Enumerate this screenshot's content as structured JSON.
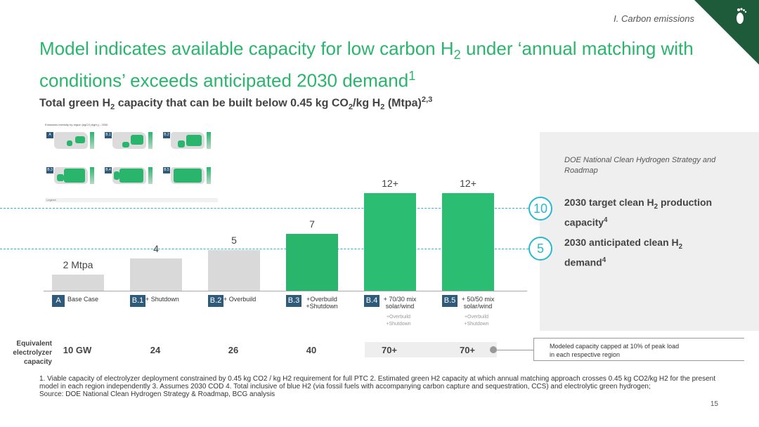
{
  "header": {
    "section": "I. Carbon emissions",
    "logo_icon": "footprint-icon"
  },
  "title": {
    "part1": "Model indicates available capacity for low carbon H",
    "sub": "2",
    "part2": " under ‘annual matching with conditions’ exceeds anticipated 2030 demand",
    "sup": "1"
  },
  "subtitle": {
    "a": "Total green H",
    "a_sub": "2",
    "b": " capacity that can be built below 0.45 kg CO",
    "b_sub": "2",
    "c": "/kg H",
    "c_sub": "2",
    "d": " (Mtpa)",
    "sup": "2,3"
  },
  "inset": {
    "caption": "Emissions intensity by region (kgCO₂/kgH₂) - 2030",
    "legend": "Legend:",
    "scenarios": [
      "A",
      "B.1",
      "B.2",
      "B.3",
      "B.4",
      "B.5"
    ]
  },
  "chart_data": {
    "type": "bar",
    "title": "Total green H2 capacity that can be built below 0.45 kg CO2/kg H2 (Mtpa)",
    "categories": [
      "A",
      "B.1",
      "B.2",
      "B.3",
      "B.4",
      "B.5"
    ],
    "category_labels": [
      "Base Case",
      "+ Shutdown",
      "+ Overbuild",
      "+Overbuild +Shutdown",
      "+ 70/30 mix solar/wind",
      "+ 50/50 mix solar/wind"
    ],
    "category_sublabels": [
      "",
      "",
      "",
      "",
      "+Overbuild +Shutdown",
      "+Overbuild +Shutdown"
    ],
    "values": [
      2,
      4,
      5,
      7,
      12,
      12
    ],
    "value_labels": [
      "2 Mtpa",
      "4",
      "5",
      "7",
      "12+",
      "12+"
    ],
    "colors": [
      "#d9d9d9",
      "#d9d9d9",
      "#d9d9d9",
      "#2ab56d",
      "#2bbd72",
      "#2bbd72"
    ],
    "reference_lines": [
      {
        "value": 10,
        "label": "2030 target clean H2 production capacity"
      },
      {
        "value": 5,
        "label": "2030 anticipated clean H2 demand"
      }
    ],
    "ylim": [
      0,
      13.5
    ]
  },
  "targets": {
    "source": "DOE National Clean Hydrogen Strategy and Roadmap",
    "target_value": "10",
    "target_label_a": "2030 target clean H",
    "target_label_sub": "2",
    "target_label_b": " production capacity",
    "target_label_sup": "4",
    "demand_value": "5",
    "demand_label_a": "2030 anticipated clean H",
    "demand_label_sub": "2",
    "demand_label_b": " demand",
    "demand_label_sup": "4"
  },
  "electrolyzer": {
    "label": "Equivalent electrolyzer capacity",
    "values": [
      "10 GW",
      "24",
      "26",
      "40",
      "70+",
      "70+"
    ],
    "cap_note": "Modeled capacity capped at 10% of peak load in each respective region"
  },
  "footnotes": {
    "text": "1. Viable capacity of electrolyzer deployment constrained by 0.45 kg CO2 / kg H2 requirement for full PTC  2. Estimated green H2 capacity at which annual matching approach crosses 0.45 kg CO2/kg H2 for the present model in each region independently  3. Assumes 2030 COD  4. Total inclusive of blue H2 (via fossil fuels with accompanying carbon capture and sequestration, CCS) and electrolytic green hydrogen;",
    "source": "Source: DOE National Clean Hydrogen Strategy & Roadmap, BCG analysis",
    "page": "15"
  }
}
